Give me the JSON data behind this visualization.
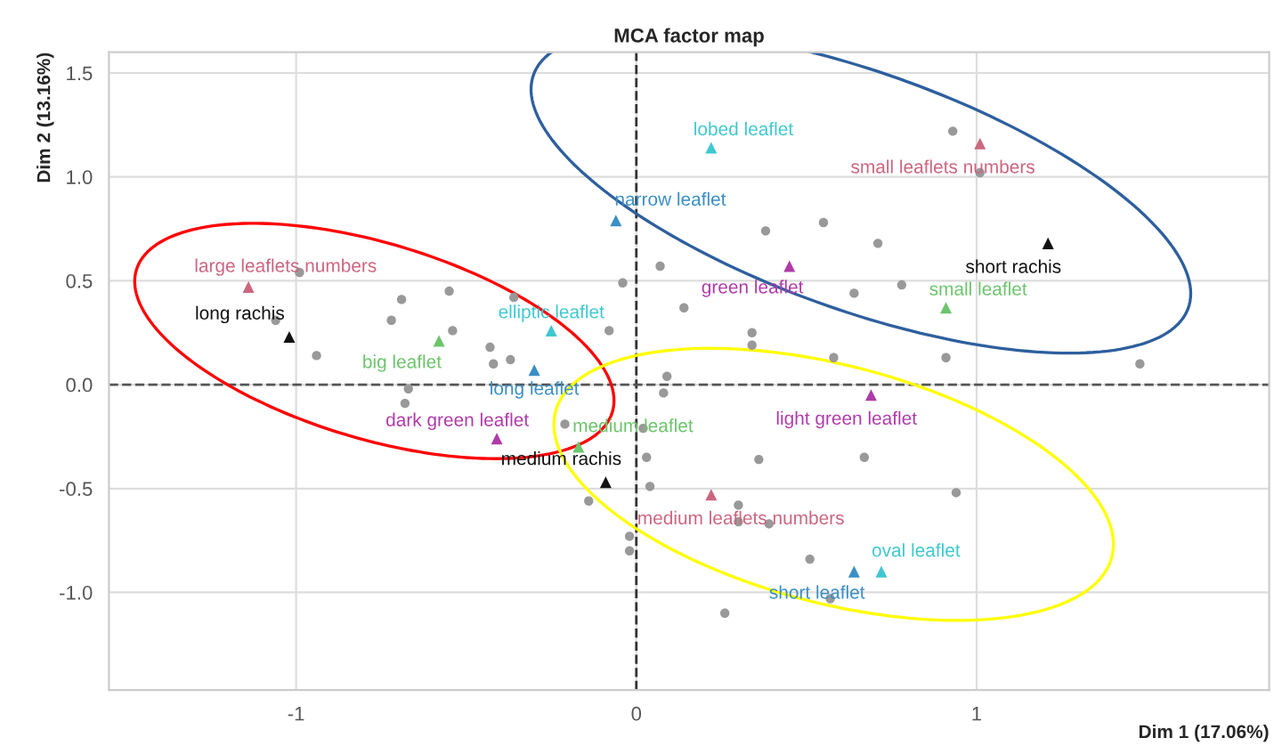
{
  "chart_data": {
    "type": "scatter",
    "title": "MCA factor map",
    "xlabel": "Dim 1 (17.06%)",
    "ylabel": "Dim 2 (13.16%)",
    "xlim": [
      -1.55,
      1.86
    ],
    "ylim": [
      -1.47,
      1.6
    ],
    "xticks": [
      -1,
      0,
      1
    ],
    "yticks": [
      {
        "value": -1,
        "label": "-1.0"
      },
      {
        "value": -0.5,
        "label": "-0.5"
      },
      {
        "value": 0,
        "label": "0.0"
      },
      {
        "value": 0.5,
        "label": "0.5"
      },
      {
        "value": 1,
        "label": "1.0"
      },
      {
        "value": 1.5,
        "label": "1.5"
      }
    ],
    "grid": true,
    "legend": false,
    "ref_lines": [
      {
        "axis": "x",
        "value": 0,
        "line_style": "dashed",
        "color": "#333333"
      },
      {
        "axis": "y",
        "value": 0,
        "line_style": "dashed",
        "color": "#555555"
      }
    ],
    "series": [
      {
        "color": "#999999",
        "marker": "circle",
        "x": [
          -0.99,
          -0.69,
          -0.55,
          -0.72,
          -0.54,
          -0.94,
          -0.43,
          -0.42,
          -0.37,
          -0.36,
          -0.08,
          -0.04,
          -1.06,
          -0.67,
          -0.68,
          -0.21,
          -0.14,
          -0.02,
          -0.02,
          0.93,
          1.01,
          0.38,
          0.55,
          0.71,
          0.07,
          0.14,
          0.64,
          0.78,
          0.34,
          0.34,
          0.58,
          0.91,
          1.48,
          0.09,
          0.08,
          0.02,
          0.03,
          0.04,
          0.36,
          0.67,
          0.94,
          0.3,
          0.3,
          0.39,
          0.51,
          0.57,
          0.26
        ],
        "values": [
          0.54,
          0.41,
          0.45,
          0.31,
          0.26,
          0.14,
          0.18,
          0.1,
          0.12,
          0.42,
          0.26,
          0.49,
          0.31,
          -0.02,
          -0.09,
          -0.19,
          -0.56,
          -0.73,
          -0.8,
          1.22,
          1.02,
          0.74,
          0.78,
          0.68,
          0.57,
          0.37,
          0.44,
          0.48,
          0.25,
          0.19,
          0.13,
          0.13,
          0.1,
          0.04,
          -0.04,
          -0.21,
          -0.35,
          -0.49,
          -0.36,
          -0.35,
          -0.52,
          -0.58,
          -0.66,
          -0.67,
          -0.84,
          -1.03,
          -1.1
        ]
      },
      {
        "color": "#cc6680",
        "marker": "triangle",
        "x": [
          -1.14,
          1.01,
          0.22
        ],
        "values": [
          0.47,
          1.16,
          -0.53
        ],
        "value_labels": [
          "large leaflets numbers",
          "small leaflets numbers",
          "medium leaflets numbers"
        ]
      },
      {
        "color": "#111111",
        "marker": "triangle",
        "x": [
          -1.02,
          1.21,
          -0.09
        ],
        "values": [
          0.23,
          0.68,
          -0.47
        ],
        "value_labels": [
          "long rachis",
          "short rachis",
          "medium rachis"
        ]
      },
      {
        "color": "#6cc46c",
        "marker": "triangle",
        "x": [
          -0.58,
          0.91,
          -0.17
        ],
        "values": [
          0.21,
          0.37,
          -0.3
        ],
        "value_labels": [
          "big leaflet",
          "small leaflet",
          "medium leaflet"
        ]
      },
      {
        "color": "#3fc8d0",
        "marker": "triangle",
        "x": [
          -0.25,
          0.22,
          0.72
        ],
        "values": [
          0.26,
          1.14,
          -0.9
        ],
        "value_labels": [
          "elliptic leaflet",
          "lobed leaflet",
          "oval leaflet"
        ]
      },
      {
        "color": "#3a8fc4",
        "marker": "triangle",
        "x": [
          -0.3,
          -0.06,
          0.64
        ],
        "values": [
          0.07,
          0.79,
          -0.9
        ],
        "value_labels": [
          "long leaflet",
          "narrow leaflet",
          "short leaflet"
        ]
      },
      {
        "color": "#b03aa8",
        "marker": "triangle",
        "x": [
          -0.41,
          0.45,
          0.69
        ],
        "values": [
          -0.26,
          0.57,
          -0.05
        ],
        "value_labels": [
          "dark green leaflet",
          "green leaflet",
          "light green leaflet"
        ]
      }
    ]
  }
}
